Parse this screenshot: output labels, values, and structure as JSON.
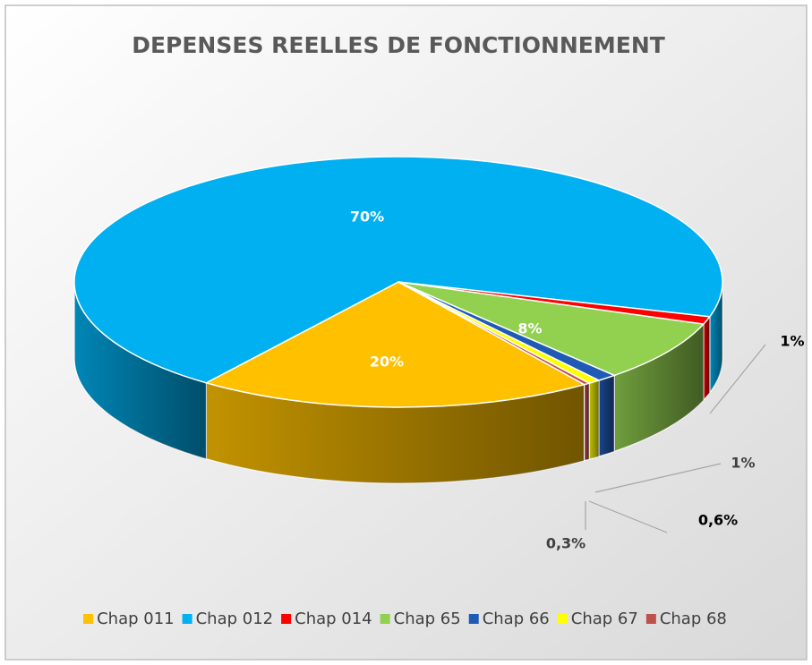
{
  "chart_data": {
    "type": "pie3d",
    "title": "DEPENSES REELLES DE FONCTIONNEMENT",
    "categories": [
      "Chap 011",
      "Chap 012",
      "Chap 014",
      "Chap 65",
      "Chap 66",
      "Chap 67",
      "Chap 68"
    ],
    "values": [
      20,
      70,
      1,
      8,
      1,
      0.6,
      0.3
    ],
    "value_labels": [
      "20%",
      "70%",
      "1%",
      "8%",
      "1%",
      "0,6%",
      "0,3%"
    ],
    "colors": [
      "#FFC000",
      "#00B0F0",
      "#FF0000",
      "#92D050",
      "#1F5BB5",
      "#FFFF00",
      "#C0504D"
    ],
    "legend": "bottom"
  }
}
